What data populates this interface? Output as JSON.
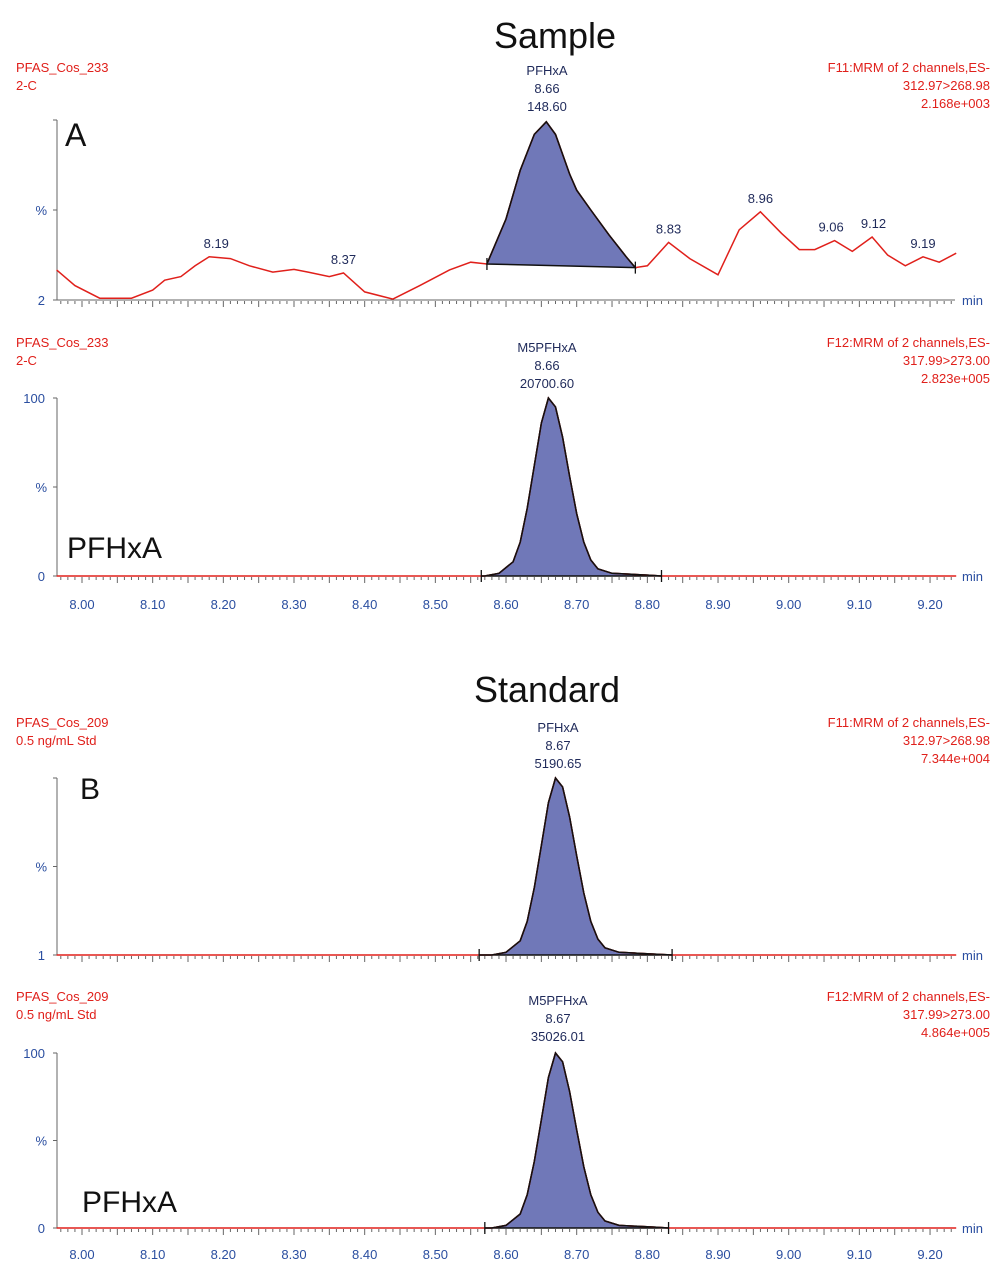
{
  "colors": {
    "trace": "#e0201b",
    "peak_fill": "#7078b8",
    "axis_text": "#2a4ea0",
    "header_text": "#e0201b",
    "peak_label": "#1f2a5a"
  },
  "chart_data": [
    {
      "type": "line",
      "title": "Sample",
      "panel_label": "A",
      "header_left": [
        "PFAS_Cos_233",
        "2-C"
      ],
      "header_right": [
        "F11:MRM of 2 channels,ES-",
        "312.97>268.98",
        "2.168e+003"
      ],
      "peak_label": [
        "PFHxA",
        "8.66",
        "148.60"
      ],
      "y_ticks": {
        "bottom": "2",
        "middle": "%"
      },
      "x_unit": "min",
      "integration": [
        8.573,
        8.783
      ],
      "points": [
        [
          7.964,
          16.7
        ],
        [
          7.99,
          8
        ],
        [
          8.025,
          1
        ],
        [
          8.07,
          1
        ],
        [
          8.1,
          5.5
        ],
        [
          8.117,
          11
        ],
        [
          8.14,
          13
        ],
        [
          8.16,
          19
        ],
        [
          8.18,
          24
        ],
        [
          8.21,
          23
        ],
        [
          8.237,
          19
        ],
        [
          8.27,
          15.5
        ],
        [
          8.3,
          17
        ],
        [
          8.32,
          15.5
        ],
        [
          8.35,
          13
        ],
        [
          8.37,
          15
        ],
        [
          8.4,
          4.5
        ],
        [
          8.44,
          0.5
        ],
        [
          8.478,
          8
        ],
        [
          8.52,
          16.7
        ],
        [
          8.55,
          21
        ],
        [
          8.573,
          20
        ],
        [
          8.6,
          45
        ],
        [
          8.62,
          72
        ],
        [
          8.64,
          92
        ],
        [
          8.657,
          99
        ],
        [
          8.67,
          92
        ],
        [
          8.69,
          70
        ],
        [
          8.7,
          61
        ],
        [
          8.72,
          50
        ],
        [
          8.746,
          36
        ],
        [
          8.77,
          24
        ],
        [
          8.783,
          18
        ],
        [
          8.8,
          19
        ],
        [
          8.83,
          32
        ],
        [
          8.86,
          23
        ],
        [
          8.9,
          14
        ],
        [
          8.93,
          39
        ],
        [
          8.96,
          49
        ],
        [
          8.99,
          37
        ],
        [
          9.015,
          28
        ],
        [
          9.037,
          28
        ],
        [
          9.065,
          33
        ],
        [
          9.09,
          27
        ],
        [
          9.118,
          35
        ],
        [
          9.14,
          25
        ],
        [
          9.165,
          19
        ],
        [
          9.19,
          24
        ],
        [
          9.213,
          21
        ],
        [
          9.237,
          26
        ]
      ],
      "peak_annotations": [
        {
          "t": 8.19,
          "y": 24,
          "label": "8.19"
        },
        {
          "t": 8.37,
          "y": 15,
          "label": "8.37"
        },
        {
          "t": 8.83,
          "y": 32,
          "label": "8.83"
        },
        {
          "t": 8.96,
          "y": 49,
          "label": "8.96"
        },
        {
          "t": 9.06,
          "y": 33,
          "label": "9.06"
        },
        {
          "t": 9.12,
          "y": 35,
          "label": "9.12"
        },
        {
          "t": 9.19,
          "y": 24,
          "label": "9.19"
        }
      ]
    },
    {
      "type": "line",
      "panel_label": "PFHxA",
      "header_left": [
        "PFAS_Cos_233",
        "2-C"
      ],
      "header_right": [
        "F12:MRM of 2 channels,ES-",
        "317.99>273.00",
        "2.823e+005"
      ],
      "peak_label": [
        "M5PFHxA",
        "8.66",
        "20700.60"
      ],
      "y_ticks": {
        "top": "100",
        "middle": "%",
        "bottom": "0"
      },
      "x_unit": "min",
      "x_ticks": [
        "8.00",
        "8.10",
        "8.20",
        "8.30",
        "8.40",
        "8.50",
        "8.60",
        "8.70",
        "8.80",
        "8.90",
        "9.00",
        "9.10",
        "9.20"
      ],
      "integration": [
        8.565,
        8.82
      ],
      "points": [
        [
          7.964,
          0
        ],
        [
          8.57,
          0
        ],
        [
          8.59,
          1.5
        ],
        [
          8.61,
          8
        ],
        [
          8.62,
          19
        ],
        [
          8.63,
          38
        ],
        [
          8.64,
          62
        ],
        [
          8.65,
          86
        ],
        [
          8.66,
          100
        ],
        [
          8.67,
          95
        ],
        [
          8.68,
          78
        ],
        [
          8.69,
          56
        ],
        [
          8.7,
          35
        ],
        [
          8.71,
          19
        ],
        [
          8.72,
          9
        ],
        [
          8.73,
          4
        ],
        [
          8.75,
          1.5
        ],
        [
          8.8,
          0.5
        ],
        [
          8.82,
          0
        ],
        [
          9.237,
          0
        ]
      ]
    },
    {
      "type": "line",
      "title": "Standard",
      "panel_label": "B",
      "header_left": [
        "PFAS_Cos_209",
        "0.5 ng/mL Std"
      ],
      "header_right": [
        "F11:MRM of 2 channels,ES-",
        "312.97>268.98",
        "7.344e+004"
      ],
      "peak_label": [
        "PFHxA",
        "8.67",
        "5190.65"
      ],
      "y_ticks": {
        "bottom": "1",
        "middle": "%"
      },
      "x_unit": "min",
      "integration": [
        8.562,
        8.835
      ],
      "points": [
        [
          7.964,
          0
        ],
        [
          8.58,
          0
        ],
        [
          8.6,
          1.5
        ],
        [
          8.62,
          8
        ],
        [
          8.63,
          19
        ],
        [
          8.64,
          38
        ],
        [
          8.65,
          62
        ],
        [
          8.66,
          86
        ],
        [
          8.67,
          100
        ],
        [
          8.68,
          95
        ],
        [
          8.69,
          78
        ],
        [
          8.7,
          56
        ],
        [
          8.71,
          35
        ],
        [
          8.72,
          19
        ],
        [
          8.73,
          9
        ],
        [
          8.74,
          4
        ],
        [
          8.76,
          1.5
        ],
        [
          8.81,
          0.5
        ],
        [
          8.835,
          0
        ],
        [
          9.237,
          0
        ]
      ]
    },
    {
      "type": "line",
      "panel_label": "PFHxA",
      "header_left": [
        "PFAS_Cos_209",
        "0.5 ng/mL Std"
      ],
      "header_right": [
        "F12:MRM of 2 channels,ES-",
        "317.99>273.00",
        "4.864e+005"
      ],
      "peak_label": [
        "M5PFHxA",
        "8.67",
        "35026.01"
      ],
      "y_ticks": {
        "top": "100",
        "middle": "%",
        "bottom": "0"
      },
      "x_unit": "min",
      "x_ticks": [
        "8.00",
        "8.10",
        "8.20",
        "8.30",
        "8.40",
        "8.50",
        "8.60",
        "8.70",
        "8.80",
        "8.90",
        "9.00",
        "9.10",
        "9.20"
      ],
      "integration": [
        8.57,
        8.83
      ],
      "points": [
        [
          7.964,
          0
        ],
        [
          8.58,
          0
        ],
        [
          8.6,
          1.5
        ],
        [
          8.62,
          8
        ],
        [
          8.63,
          19
        ],
        [
          8.64,
          38
        ],
        [
          8.65,
          62
        ],
        [
          8.66,
          86
        ],
        [
          8.67,
          100
        ],
        [
          8.68,
          95
        ],
        [
          8.69,
          78
        ],
        [
          8.7,
          56
        ],
        [
          8.71,
          35
        ],
        [
          8.72,
          19
        ],
        [
          8.73,
          9
        ],
        [
          8.74,
          4
        ],
        [
          8.76,
          1.5
        ],
        [
          8.81,
          0.5
        ],
        [
          8.83,
          0
        ],
        [
          9.237,
          0
        ]
      ]
    }
  ]
}
